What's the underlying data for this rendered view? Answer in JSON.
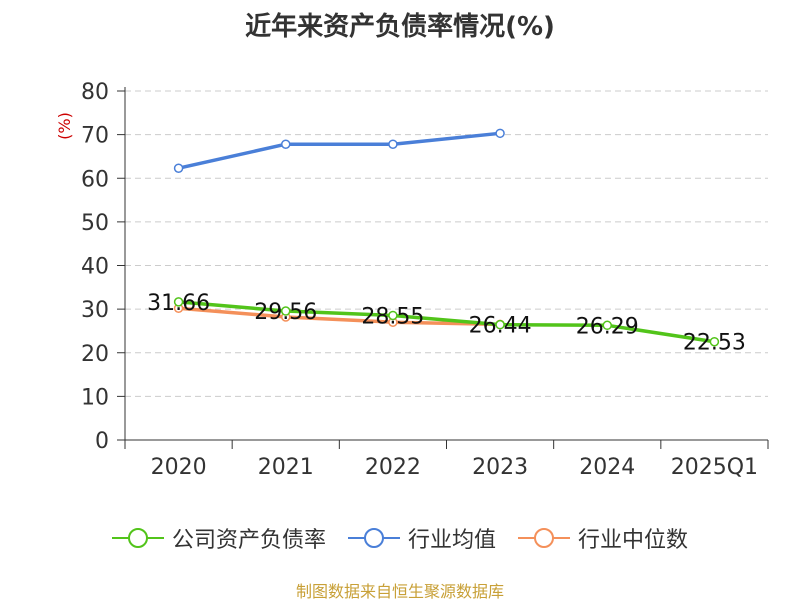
{
  "title": "近年来资产负债率情况(%)",
  "source": "制图数据来自恒生聚源数据库",
  "chart_data": {
    "type": "line",
    "title": "近年来资产负债率情况(%)",
    "ylabel": "(%)",
    "xlabel": "",
    "ylim": [
      0,
      80
    ],
    "yticks": [
      "0",
      "10",
      "20",
      "30",
      "40",
      "50",
      "60",
      "70",
      "80"
    ],
    "categories": [
      "2020",
      "2021",
      "2022",
      "2023",
      "2024",
      "2025Q1"
    ],
    "grid": true,
    "legend_position": "bottom",
    "series": [
      {
        "name": "公司资产负债率",
        "color": "#52c41a",
        "values": [
          31.66,
          29.56,
          28.55,
          26.44,
          26.29,
          22.53
        ],
        "labels": [
          "31.66",
          "29.56",
          "28.55",
          "26.44",
          "26.29",
          "22.53"
        ]
      },
      {
        "name": "行业均值",
        "color": "#4a7fd8",
        "values": [
          62.3,
          67.8,
          67.8,
          70.3,
          null,
          null
        ]
      },
      {
        "name": "行业中位数",
        "color": "#f4905a",
        "values": [
          30.2,
          28.2,
          27.0,
          26.5,
          null,
          null
        ]
      }
    ]
  }
}
